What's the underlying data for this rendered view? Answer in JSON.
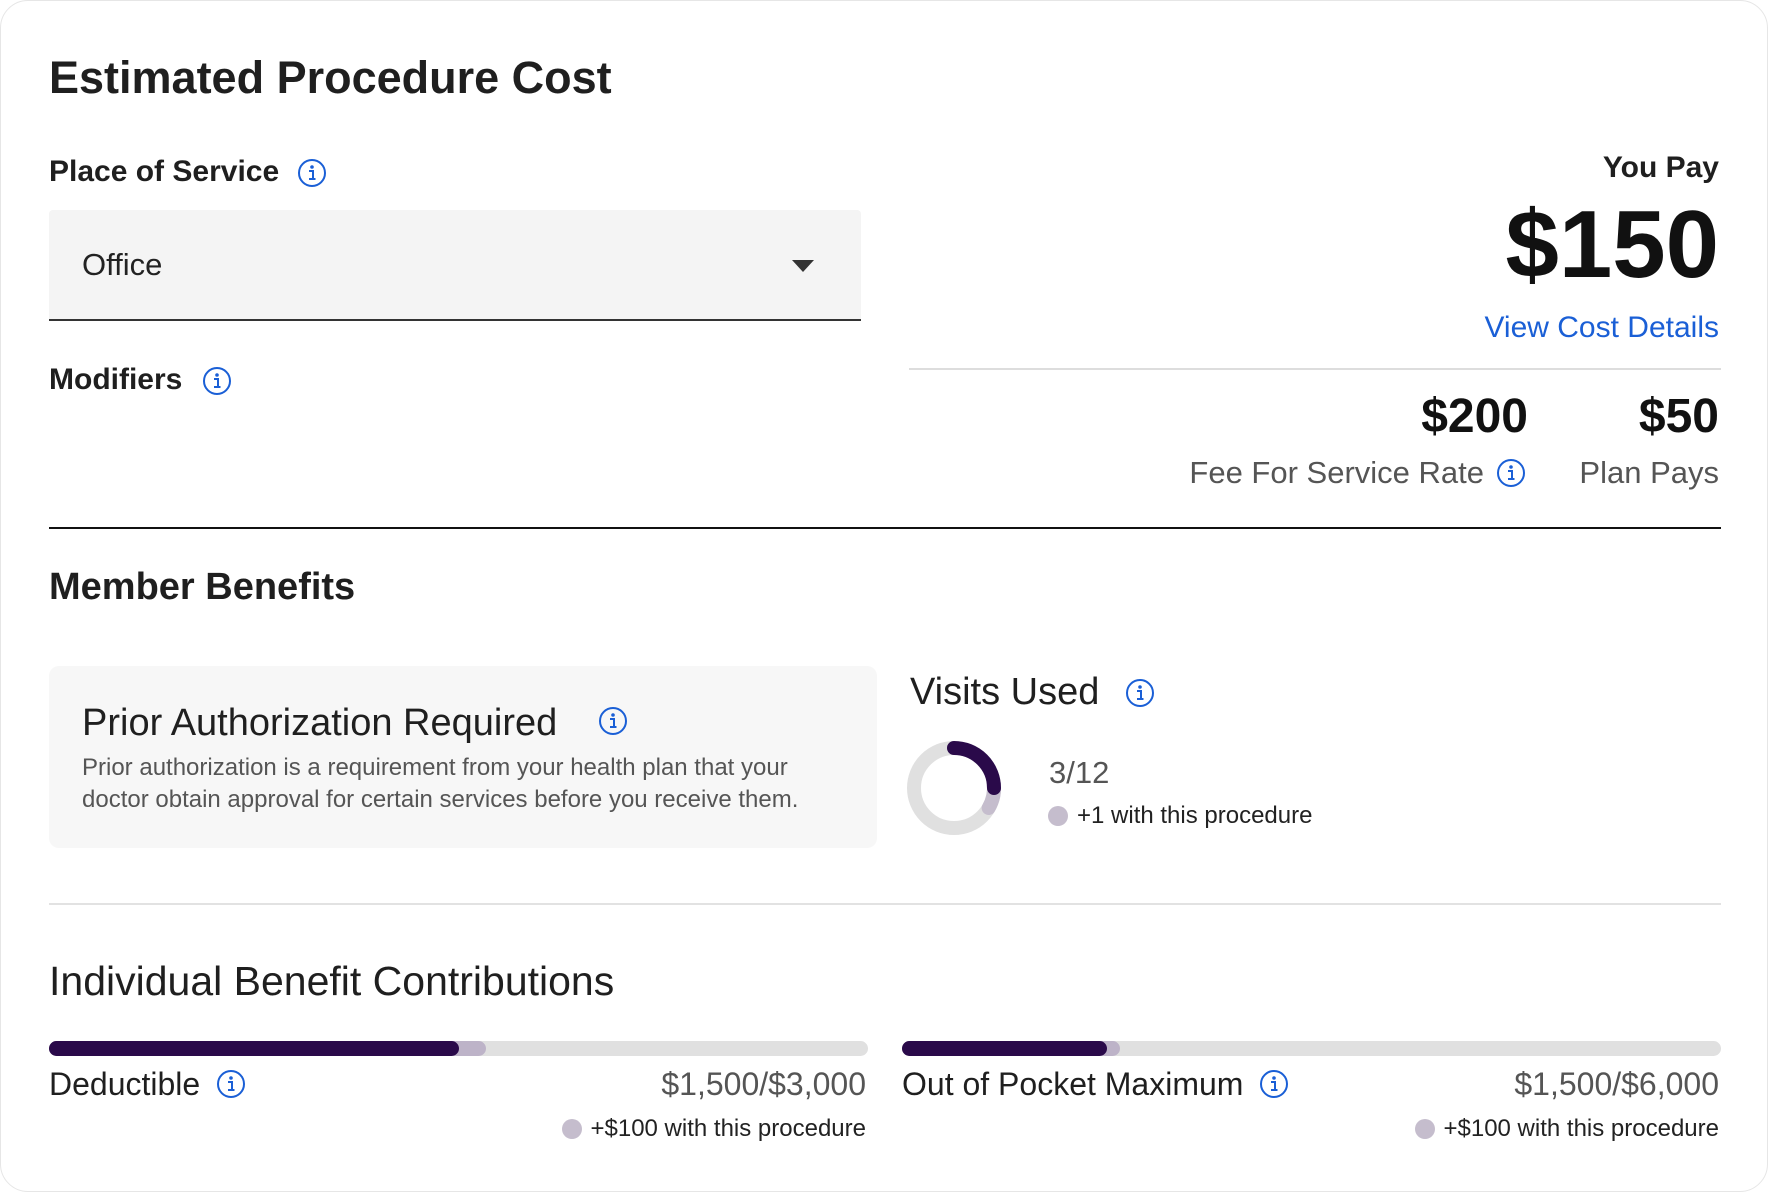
{
  "header": {
    "title": "Estimated Procedure Cost"
  },
  "place_of_service": {
    "label": "Place of Service",
    "selected": "Office"
  },
  "modifiers": {
    "label": "Modifiers"
  },
  "cost": {
    "you_pay_label": "You Pay",
    "you_pay": "$150",
    "details_link": "View Cost Details",
    "fee_rate": "$200",
    "fee_rate_label": "Fee For Service Rate",
    "plan_pays": "$50",
    "plan_pays_label": "Plan Pays"
  },
  "member_benefits": {
    "title": "Member Benefits",
    "prior_auth": {
      "title": "Prior Authorization Required",
      "text_lines": [
        "Prior authorization is a requirement from your health plan that your",
        "doctor obtain approval for certain services before you receive them."
      ]
    },
    "visits": {
      "title": "Visits Used",
      "used": 3,
      "total": 12,
      "added": 1,
      "label": "3/12",
      "note": "+1 with this procedure"
    }
  },
  "contributions": {
    "title": "Individual Benefit Contributions",
    "items": [
      {
        "name": "Deductible",
        "used": 1500,
        "max": 3000,
        "added": 100,
        "label": "$1,500/$3,000",
        "note": "+$100 with this procedure"
      },
      {
        "name": "Out of Pocket Maximum",
        "used": 1500,
        "max": 6000,
        "added": 100,
        "label": "$1,500/$6,000",
        "note": "+$100 with this procedure"
      }
    ]
  }
}
